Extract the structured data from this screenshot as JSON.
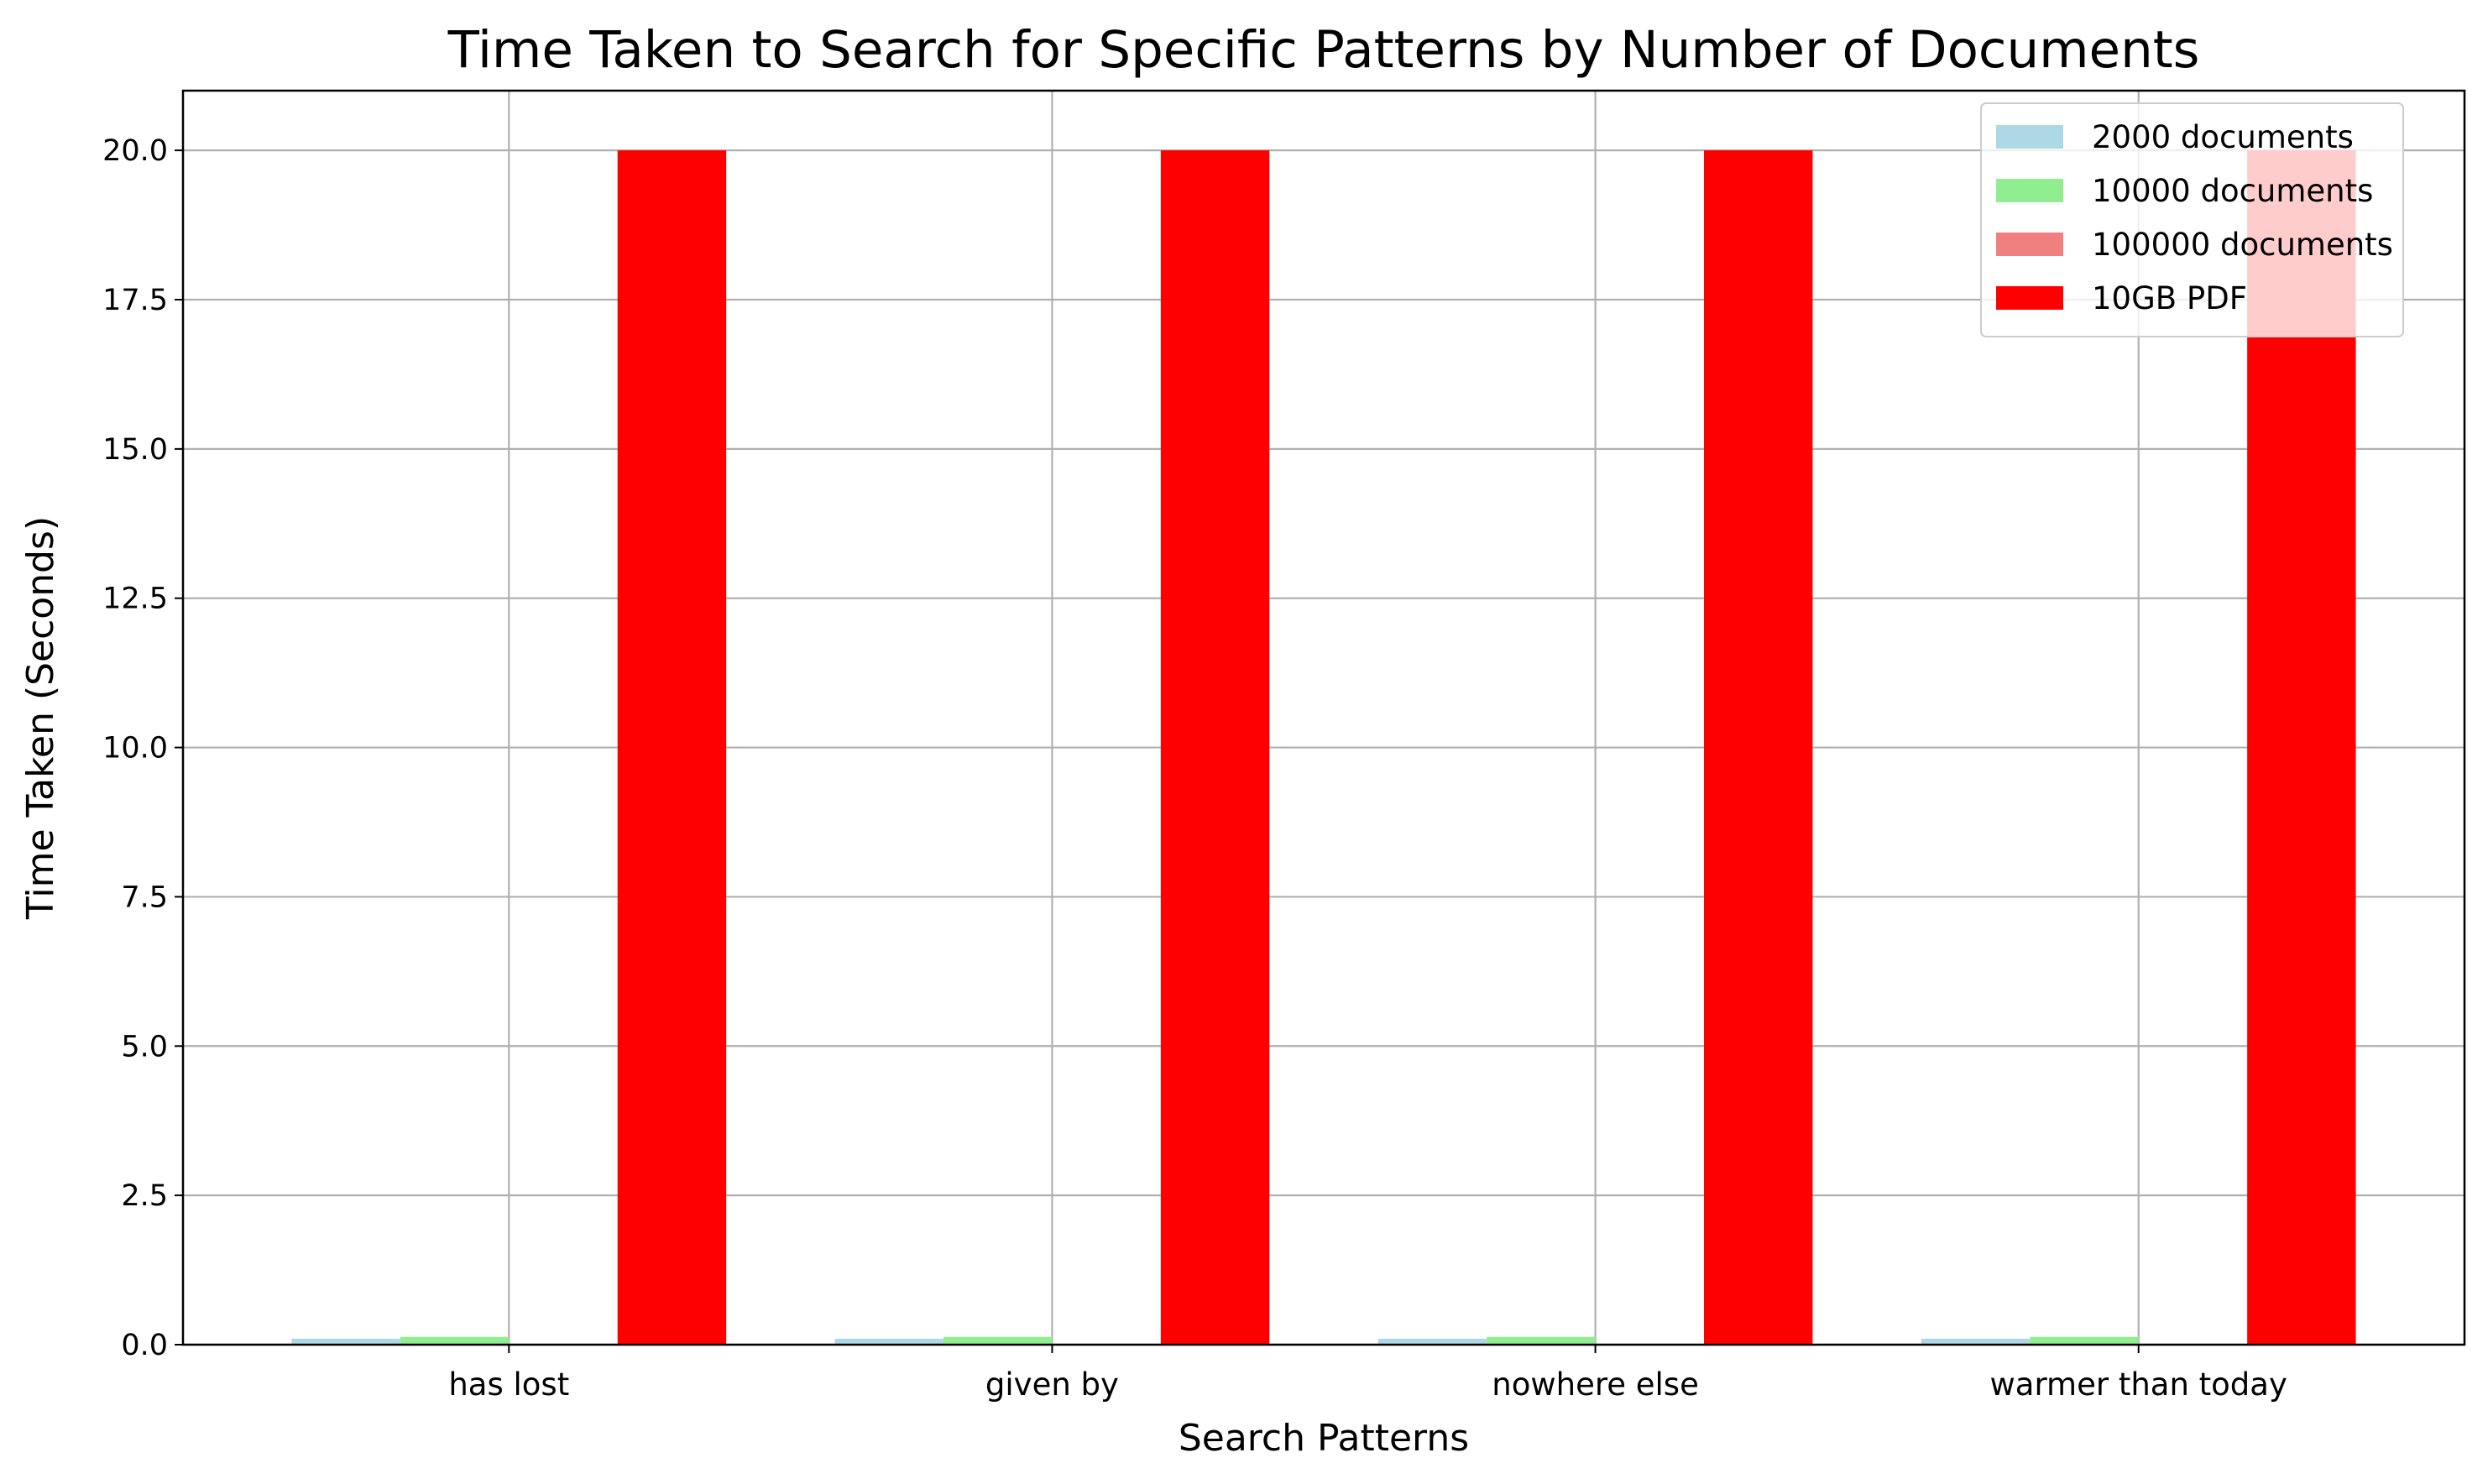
{
  "chart_data": {
    "type": "bar",
    "title": "Time Taken to Search for Specific Patterns by Number of Documents",
    "xlabel": "Search Patterns",
    "ylabel": "Time Taken (Seconds)",
    "categories": [
      "has lost",
      "given by",
      "nowhere else",
      "warmer than today"
    ],
    "ylim": [
      0,
      21
    ],
    "yticks": [
      "0.0",
      "2.5",
      "5.0",
      "7.5",
      "10.0",
      "12.5",
      "15.0",
      "17.5",
      "20.0"
    ],
    "grid": true,
    "legend_position": "top-right",
    "series": [
      {
        "name": "2000 documents",
        "color": "#add8e6",
        "values": [
          0.1,
          0.1,
          0.1,
          0.1
        ]
      },
      {
        "name": "10000 documents",
        "color": "#90ee90",
        "values": [
          0.13,
          0.13,
          0.13,
          0.13
        ]
      },
      {
        "name": "100000 documents",
        "color": "#f08080",
        "values": [
          0,
          0,
          0,
          0
        ]
      },
      {
        "name": "10GB PDF",
        "color": "#ff0000",
        "values": [
          20,
          20,
          20,
          20
        ]
      }
    ]
  }
}
